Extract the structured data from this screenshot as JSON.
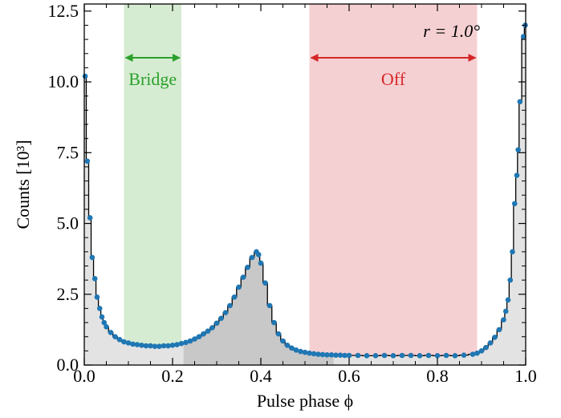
{
  "chart_data": {
    "type": "scatter",
    "xlabel": "Pulse phase ϕ",
    "ylabel": "Counts [10³]",
    "annotation": "r = 1.0°",
    "color": "#1f77b4",
    "xlim": [
      0,
      1
    ],
    "ylim": [
      0,
      12.75
    ],
    "xticks": [
      {
        "value": 0,
        "label": "0.0"
      },
      {
        "value": 0.2,
        "label": "0.2"
      },
      {
        "value": 0.4,
        "label": "0.4"
      },
      {
        "value": 0.6,
        "label": "0.6"
      },
      {
        "value": 0.8,
        "label": "0.8"
      },
      {
        "value": 1,
        "label": "1.0"
      }
    ],
    "yticks": [
      {
        "value": 0,
        "label": "0.0"
      },
      {
        "value": 2.5,
        "label": "2.5"
      },
      {
        "value": 5,
        "label": "5.0"
      },
      {
        "value": 7.5,
        "label": "7.5"
      },
      {
        "value": 10,
        "label": "10.0"
      },
      {
        "value": 12.5,
        "label": "12.5"
      }
    ],
    "regions": [
      {
        "name": "Bridge",
        "range": [
          0.09,
          0.22
        ],
        "color": "#d6ecd2",
        "text_color": "#2ca02c"
      },
      {
        "name": "Off",
        "range": [
          0.51,
          0.89
        ],
        "color": "#f5d0d3",
        "text_color": "#d62728"
      }
    ],
    "onpulse_fill": [
      0.225,
      0.565
    ],
    "x": [
      0.002,
      0.007,
      0.013,
      0.018,
      0.024,
      0.029,
      0.035,
      0.04,
      0.045,
      0.05,
      0.06,
      0.07,
      0.08,
      0.09,
      0.1,
      0.11,
      0.12,
      0.13,
      0.14,
      0.15,
      0.16,
      0.17,
      0.18,
      0.19,
      0.2,
      0.21,
      0.22,
      0.23,
      0.24,
      0.25,
      0.26,
      0.27,
      0.28,
      0.29,
      0.3,
      0.31,
      0.32,
      0.33,
      0.34,
      0.35,
      0.36,
      0.37,
      0.38,
      0.39,
      0.395,
      0.4,
      0.41,
      0.42,
      0.43,
      0.44,
      0.45,
      0.46,
      0.47,
      0.48,
      0.49,
      0.5,
      0.51,
      0.52,
      0.53,
      0.54,
      0.55,
      0.56,
      0.57,
      0.58,
      0.59,
      0.6,
      0.62,
      0.64,
      0.66,
      0.68,
      0.7,
      0.72,
      0.74,
      0.76,
      0.78,
      0.8,
      0.82,
      0.84,
      0.86,
      0.88,
      0.89,
      0.9,
      0.91,
      0.92,
      0.93,
      0.94,
      0.95,
      0.955,
      0.96,
      0.965,
      0.97,
      0.975,
      0.98,
      0.983,
      0.987,
      0.995,
      0.999
    ],
    "values": [
      10.2,
      7.2,
      5.2,
      3.8,
      3.05,
      2.4,
      2.0,
      1.7,
      1.5,
      1.35,
      1.15,
      1.0,
      0.9,
      0.82,
      0.78,
      0.74,
      0.72,
      0.7,
      0.68,
      0.68,
      0.66,
      0.66,
      0.68,
      0.68,
      0.7,
      0.72,
      0.76,
      0.8,
      0.85,
      0.92,
      1.0,
      1.1,
      1.2,
      1.32,
      1.48,
      1.65,
      1.85,
      2.1,
      2.4,
      2.75,
      3.1,
      3.45,
      3.8,
      4.0,
      3.9,
      3.6,
      2.9,
      2.1,
      1.5,
      1.1,
      0.85,
      0.7,
      0.6,
      0.53,
      0.48,
      0.45,
      0.42,
      0.4,
      0.38,
      0.37,
      0.36,
      0.36,
      0.35,
      0.35,
      0.34,
      0.34,
      0.34,
      0.33,
      0.33,
      0.34,
      0.33,
      0.34,
      0.34,
      0.33,
      0.34,
      0.33,
      0.34,
      0.33,
      0.35,
      0.38,
      0.42,
      0.5,
      0.62,
      0.78,
      0.98,
      1.25,
      1.6,
      1.9,
      2.3,
      3.0,
      4.0,
      5.7,
      6.7,
      7.6,
      9.3,
      11.6,
      12.0
    ]
  }
}
